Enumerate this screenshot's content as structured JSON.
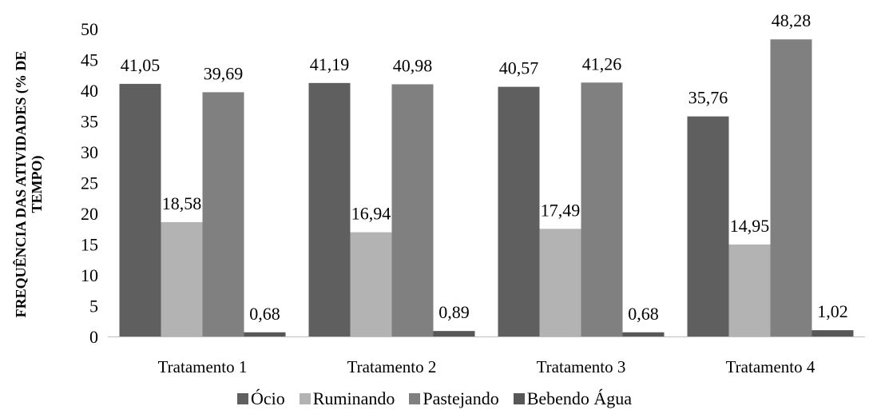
{
  "chart_data": {
    "type": "bar",
    "title": "",
    "xlabel": "",
    "ylabel": "FREQUÊNCIA DAS ATIVIDADES (% DE TEMPO)",
    "ylabel_lines": [
      "FREQUÊNCIA DAS ATIVIDADES (% DE",
      "TEMPO)"
    ],
    "ylim": [
      0,
      50
    ],
    "yticks": [
      0,
      5,
      10,
      15,
      20,
      25,
      30,
      35,
      40,
      45,
      50
    ],
    "grid": false,
    "legend_position": "bottom",
    "categories": [
      "Tratamento 1",
      "Tratamento 2",
      "Tratamento 3",
      "Tratamento 4"
    ],
    "series": [
      {
        "name": "Ócio",
        "color": "#5f5f5f",
        "values": [
          41.05,
          41.19,
          40.57,
          35.76
        ],
        "labels": [
          "41,05",
          "41,19",
          "40,57",
          "35,76"
        ]
      },
      {
        "name": "Ruminando",
        "color": "#b3b3b3",
        "values": [
          18.58,
          16.94,
          17.49,
          14.95
        ],
        "labels": [
          "18,58",
          "16,94",
          "17,49",
          "14,95"
        ]
      },
      {
        "name": "Pastejando",
        "color": "#808080",
        "values": [
          39.69,
          40.98,
          41.26,
          48.28
        ],
        "labels": [
          "39,69",
          "40,98",
          "41,26",
          "48,28"
        ]
      },
      {
        "name": "Bebendo Água",
        "color": "#575757",
        "values": [
          0.68,
          0.89,
          0.68,
          1.02
        ],
        "labels": [
          "0,68",
          "0,89",
          "0,68",
          "1,02"
        ]
      }
    ]
  }
}
